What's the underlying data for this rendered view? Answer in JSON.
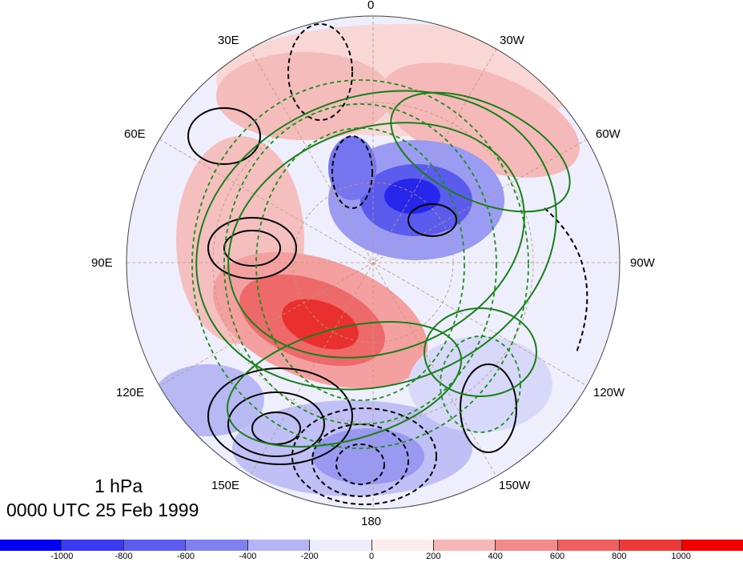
{
  "map": {
    "projection": "north polar stereographic",
    "longitude_labels": {
      "top": "0",
      "upper_left": "30E",
      "upper_right": "30W",
      "left_upper": "60E",
      "right_upper": "60W",
      "left": "90E",
      "right": "90W",
      "left_lower": "120E",
      "right_lower": "120W",
      "lower_left": "150E",
      "lower_right": "150W",
      "bottom": "180"
    }
  },
  "title": {
    "level": "1 hPa",
    "time": "0000 UTC 25 Feb 1999"
  },
  "colorbar": {
    "colors": [
      "#0000f5",
      "#3a3af0",
      "#5c5cef",
      "#8080f0",
      "#b5b5f5",
      "#ececfd",
      "#fdecec",
      "#f7b7b7",
      "#f28a8a",
      "#ee6060",
      "#ec3a3a",
      "#f20000"
    ],
    "ticks": [
      "-1000",
      "-800",
      "-600",
      "-400",
      "-200",
      "0",
      "200",
      "400",
      "600",
      "800",
      "1000"
    ]
  }
}
